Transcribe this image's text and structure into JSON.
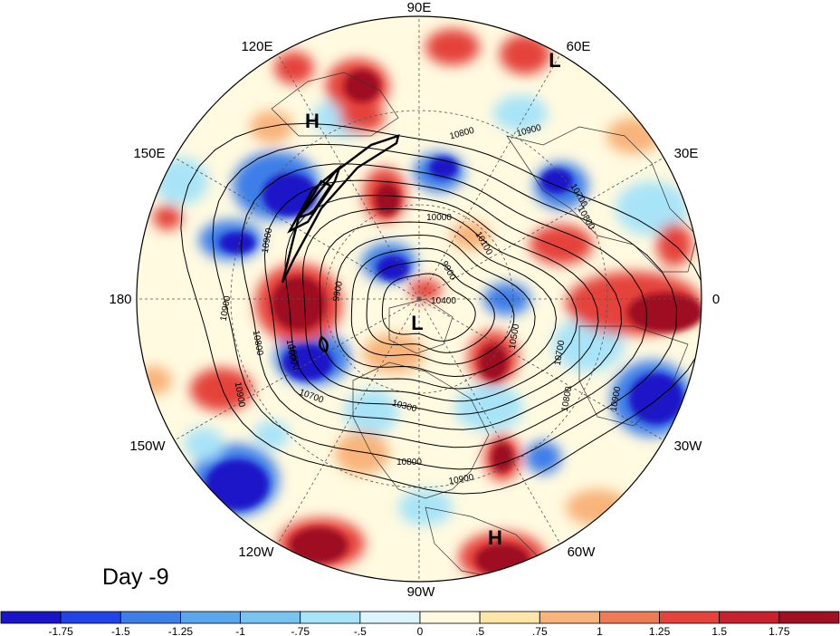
{
  "panel": {
    "day_label": "Day -9"
  },
  "longitude_labels": [
    {
      "id": "lon-90e",
      "text": "90E"
    },
    {
      "id": "lon-60e",
      "text": "60E"
    },
    {
      "id": "lon-30e",
      "text": "30E"
    },
    {
      "id": "lon-0",
      "text": "0"
    },
    {
      "id": "lon-30w",
      "text": "30W"
    },
    {
      "id": "lon-60w",
      "text": "60W"
    },
    {
      "id": "lon-90w",
      "text": "90W"
    },
    {
      "id": "lon-120w",
      "text": "120W"
    },
    {
      "id": "lon-150w",
      "text": "150W"
    },
    {
      "id": "lon-180",
      "text": "180"
    },
    {
      "id": "lon-150e",
      "text": "150E"
    },
    {
      "id": "lon-120e",
      "text": "120E"
    }
  ],
  "pressure_centers": [
    {
      "id": "high-pacific-north",
      "text": "H"
    },
    {
      "id": "low-asia",
      "text": "L"
    },
    {
      "id": "low-pole",
      "text": "L"
    },
    {
      "id": "high-atlantic",
      "text": "H"
    }
  ],
  "contour_labels": [
    {
      "id": "c1",
      "text": "10800"
    },
    {
      "id": "c2",
      "text": "10900"
    },
    {
      "id": "c3",
      "text": "10700"
    },
    {
      "id": "c4",
      "text": "10800"
    },
    {
      "id": "c5",
      "text": "10600"
    },
    {
      "id": "c6",
      "text": "10900"
    },
    {
      "id": "c7",
      "text": "10000"
    },
    {
      "id": "c8",
      "text": "10100"
    },
    {
      "id": "c9",
      "text": "9900"
    },
    {
      "id": "c10",
      "text": "10900"
    },
    {
      "id": "c11",
      "text": "9900"
    },
    {
      "id": "c12",
      "text": "10800"
    },
    {
      "id": "c13",
      "text": "10600"
    },
    {
      "id": "c14",
      "text": "10500"
    },
    {
      "id": "c15",
      "text": "10700"
    },
    {
      "id": "c16",
      "text": "10800"
    },
    {
      "id": "c17",
      "text": "10900"
    },
    {
      "id": "c18",
      "text": "10900"
    },
    {
      "id": "c19",
      "text": "10700"
    },
    {
      "id": "c20",
      "text": "10300"
    },
    {
      "id": "c21",
      "text": "10800"
    },
    {
      "id": "c22",
      "text": "10900"
    },
    {
      "id": "c23",
      "text": "10400"
    }
  ],
  "colorbar": {
    "colors": [
      "#1a14c8",
      "#2244e6",
      "#3d7ee8",
      "#5aa6ec",
      "#78c4f0",
      "#a8e4f8",
      "#dcf4fc",
      "#fffae0",
      "#fde6a8",
      "#f8b47a",
      "#ef7a56",
      "#e4423a",
      "#c8202c",
      "#9e1022"
    ],
    "tick_labels": [
      "-1.75",
      "-1.5",
      "-1.25",
      "-1",
      "-.75",
      "-.5",
      "0",
      ".5",
      ".75",
      "1",
      "1.25",
      "1.5",
      "1.75"
    ]
  },
  "colors": {
    "strong_blue": "#1a14c8",
    "mid_blue": "#3d7ee8",
    "light_blue": "#a8e4f8",
    "pale": "#fffae0",
    "orange": "#f8b47a",
    "red": "#e4423a",
    "dark_red": "#9e1022"
  }
}
